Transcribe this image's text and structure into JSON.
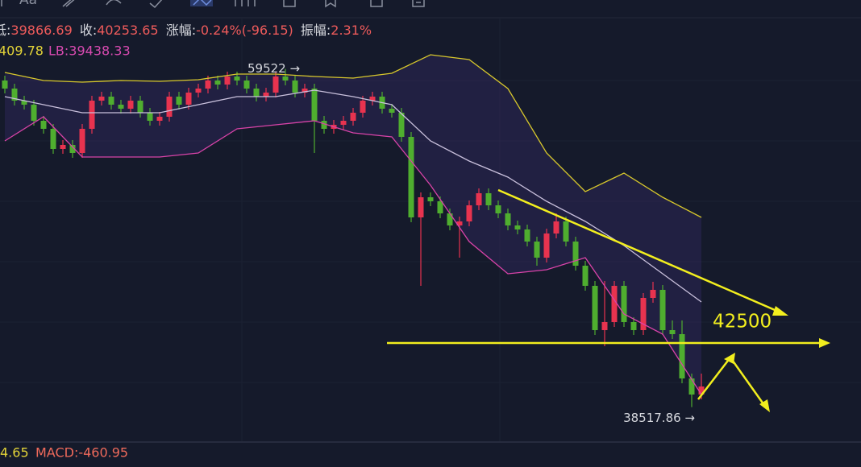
{
  "toolbar": {
    "font_button": "Aa"
  },
  "chart_data": {
    "type": "candlestick",
    "info": [
      {
        "label": "低:",
        "value": "39866.69"
      },
      {
        "label": "收:",
        "value": "40253.65"
      },
      {
        "label": "涨幅:",
        "value": "-0.24%(-96.15)"
      },
      {
        "label": "振幅:",
        "value": "2.31%"
      }
    ],
    "band_info": {
      "upper": "409.78",
      "lower": "LB:39438.33"
    },
    "macd_info": {
      "dif": "4.65",
      "macd": "MACD:-460.95"
    },
    "ylim": [
      36400,
      62700
    ],
    "up_color": "#e8334f",
    "down_color": "#4fae2f",
    "open": [
      58800,
      58300,
      57550,
      57300,
      56300,
      55800,
      54550,
      54800,
      54300,
      55800,
      57550,
      57800,
      57300,
      57050,
      57550,
      56800,
      56300,
      56550,
      57800,
      57300,
      58050,
      58300,
      58800,
      58550,
      59050,
      58800,
      58300,
      57800,
      58050,
      59050,
      58800,
      58050,
      58300,
      56300,
      55800,
      56050,
      56300,
      56800,
      57550,
      57800,
      57050,
      56800,
      55300,
      50300,
      51550,
      51300,
      50550,
      49800,
      50050,
      51050,
      51800,
      51050,
      50550,
      49800,
      49550,
      48800,
      47800,
      49300,
      50050,
      48800,
      47300,
      46050,
      43300,
      43800,
      46050,
      43800,
      43300,
      45300,
      45800,
      43300,
      43050,
      40300,
      39300
    ],
    "high": [
      59100,
      58600,
      57850,
      57600,
      56600,
      56100,
      55100,
      55100,
      56100,
      57850,
      58100,
      58100,
      57600,
      57850,
      57850,
      57100,
      56850,
      58100,
      58100,
      58350,
      58600,
      59100,
      59100,
      59350,
      59350,
      59100,
      58600,
      58350,
      59350,
      59522,
      59100,
      58600,
      58600,
      56600,
      56350,
      56600,
      57100,
      57850,
      58100,
      58100,
      57350,
      57100,
      55600,
      51850,
      51850,
      51600,
      50850,
      50350,
      51350,
      52100,
      52100,
      51350,
      50850,
      50100,
      49850,
      49100,
      49600,
      50550,
      50350,
      49100,
      47600,
      46350,
      46350,
      46350,
      46350,
      44100,
      45600,
      46300,
      46100,
      43900,
      43900,
      40600,
      40600
    ],
    "low": [
      58000,
      57250,
      57000,
      56000,
      55500,
      54250,
      54250,
      54000,
      54000,
      55500,
      57250,
      57000,
      56750,
      56750,
      56500,
      56000,
      56000,
      56250,
      57000,
      57000,
      57750,
      58000,
      58250,
      58250,
      58500,
      58000,
      57500,
      57500,
      57750,
      58500,
      57750,
      57750,
      54300,
      55500,
      55500,
      55750,
      56000,
      56500,
      57250,
      56750,
      56500,
      55000,
      50000,
      46050,
      51000,
      50250,
      49500,
      47800,
      49750,
      50750,
      50750,
      50250,
      49500,
      49250,
      48500,
      47300,
      47500,
      49000,
      48500,
      47000,
      45750,
      43000,
      42300,
      43500,
      43500,
      43000,
      43000,
      45000,
      43000,
      42750,
      40000,
      38517.86,
      39000
    ],
    "close": [
      58300,
      57550,
      57300,
      56300,
      55800,
      54550,
      54800,
      54300,
      55800,
      57550,
      57800,
      57300,
      57050,
      57550,
      56800,
      56300,
      56550,
      57800,
      57300,
      58050,
      58300,
      58800,
      58550,
      59050,
      58800,
      58300,
      57800,
      58050,
      59050,
      58800,
      58050,
      58300,
      56300,
      55800,
      56050,
      56300,
      56800,
      57550,
      57800,
      57050,
      56800,
      55300,
      50300,
      51550,
      51300,
      50550,
      49800,
      50050,
      51050,
      51800,
      51050,
      50550,
      49800,
      49550,
      48800,
      47800,
      49300,
      50050,
      48800,
      47300,
      46050,
      43300,
      43800,
      46050,
      43800,
      43300,
      45300,
      45800,
      43300,
      43050,
      40300,
      39300,
      39800
    ],
    "band_x": [
      0,
      4,
      8,
      12,
      16,
      20,
      24,
      28,
      32,
      36,
      40,
      44,
      48,
      52,
      56,
      60,
      64,
      68,
      72
    ],
    "bands": [
      {
        "color": "#d8c82c",
        "values": [
          59300,
          58800,
          58700,
          58800,
          58750,
          58850,
          59200,
          59200,
          59050,
          58950,
          59250,
          60400,
          60100,
          58300,
          54300,
          51900,
          53050,
          51550,
          50300
        ]
      },
      {
        "color": "#c9c0dc",
        "values": [
          57800,
          57300,
          56800,
          56800,
          56800,
          57300,
          57800,
          57800,
          58200,
          57800,
          57300,
          55050,
          53800,
          52800,
          51300,
          50050,
          48550,
          46800,
          45050
        ]
      },
      {
        "color": "#d843a8",
        "values": [
          55050,
          56550,
          54050,
          54050,
          54050,
          54300,
          55800,
          56050,
          56300,
          55550,
          55300,
          52300,
          48800,
          46800,
          47050,
          47800,
          44300,
          43050,
          39300
        ]
      }
    ],
    "annotations": [
      {
        "value": 59522,
        "label": "59522 →"
      },
      {
        "value": 38517.86,
        "label": "38517.86 →"
      },
      {
        "value": 42500,
        "label": "42500"
      }
    ]
  }
}
